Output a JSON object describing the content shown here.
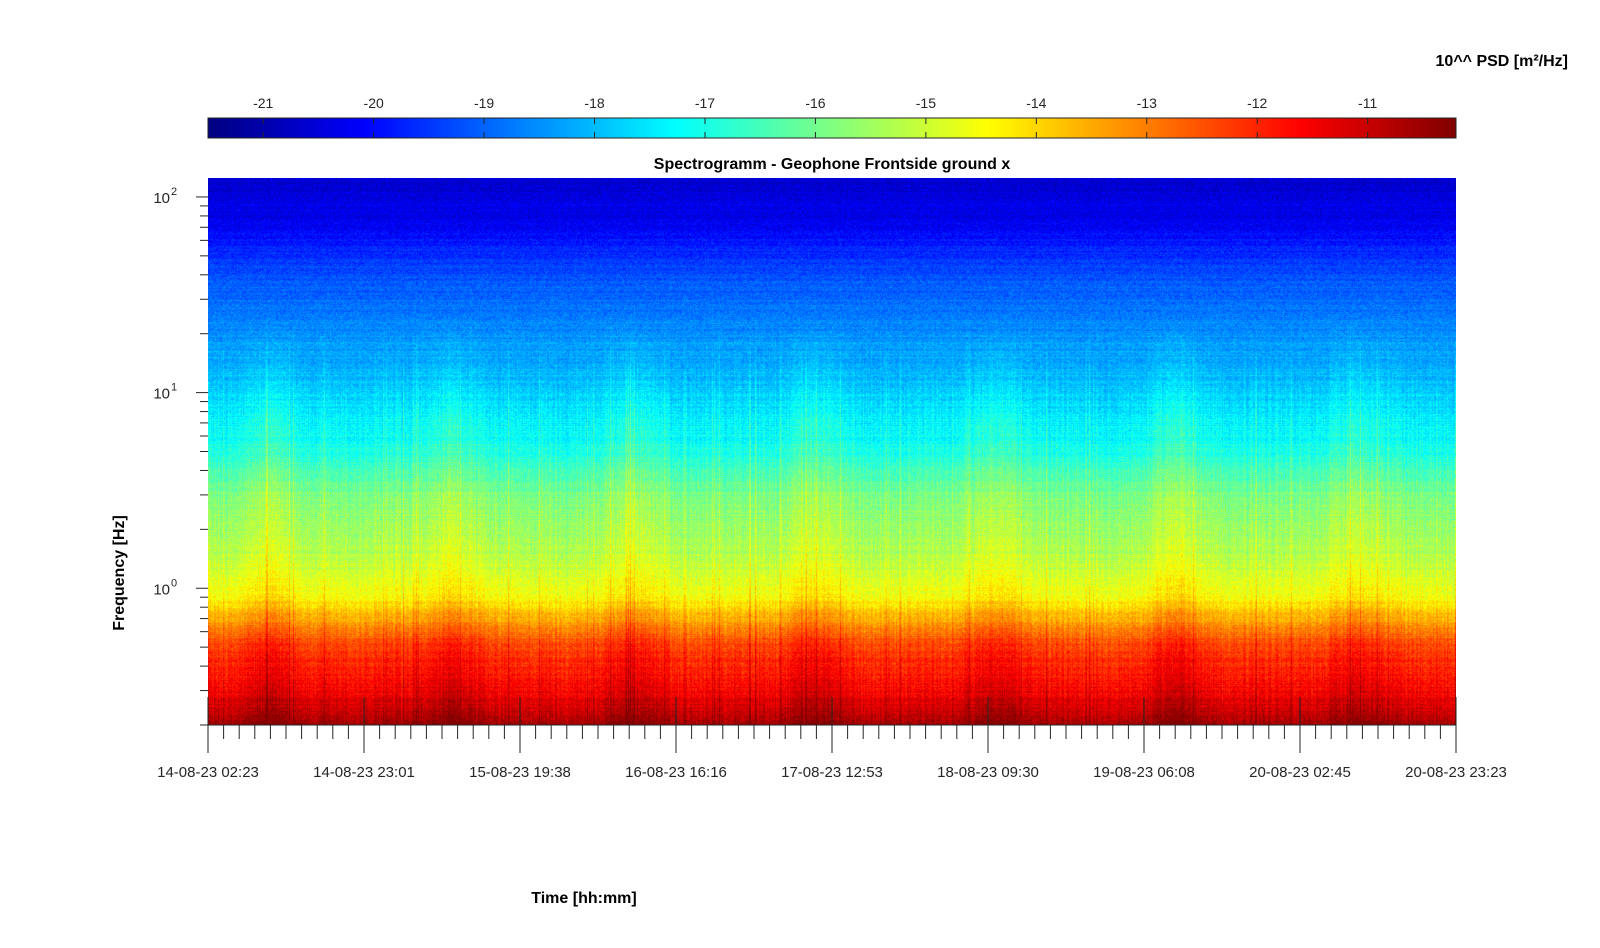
{
  "chart_data": {
    "type": "heatmap",
    "title": "Spectrogramm - Geophone Frontside ground x",
    "xlabel": "Time [hh:mm]",
    "ylabel": "Frequency [Hz]",
    "yscale": "log",
    "ylim": [
      0.2,
      125
    ],
    "x_tick_labels": [
      "14-08-23 02:23",
      "14-08-23 23:01",
      "15-08-23 19:38",
      "16-08-23 16:16",
      "17-08-23 12:53",
      "18-08-23 09:30",
      "19-08-23 06:08",
      "20-08-23 02:45",
      "20-08-23 23:23"
    ],
    "y_ticks": [
      1,
      10,
      100
    ],
    "y_tick_labels": [
      {
        "base": "10",
        "exp": "0"
      },
      {
        "base": "10",
        "exp": "1"
      },
      {
        "base": "10",
        "exp": "2"
      }
    ],
    "colorbar": {
      "label": "10^^ PSD [m²/Hz]",
      "colormap": "jet",
      "range": [
        -21.5,
        -10.2
      ],
      "ticks": [
        -21,
        -20,
        -19,
        -18,
        -17,
        -16,
        -15,
        -14,
        -13,
        -12,
        -11
      ],
      "tick_labels": [
        "-21",
        "-20",
        "-19",
        "-18",
        "-17",
        "-16",
        "-15",
        "-14",
        "-13",
        "-12",
        "-11"
      ]
    },
    "frequency_profile": [
      {
        "f": 0.2,
        "log10_psd": -10.6
      },
      {
        "f": 0.3,
        "log10_psd": -11.6
      },
      {
        "f": 0.5,
        "log10_psd": -12.3
      },
      {
        "f": 0.7,
        "log10_psd": -13.5
      },
      {
        "f": 0.9,
        "log10_psd": -14.5
      },
      {
        "f": 1.5,
        "log10_psd": -15.3
      },
      {
        "f": 3,
        "log10_psd": -15.9
      },
      {
        "f": 5,
        "log10_psd": -17.0
      },
      {
        "f": 10,
        "log10_psd": -17.8
      },
      {
        "f": 20,
        "log10_psd": -18.5
      },
      {
        "f": 40,
        "log10_psd": -19.2
      },
      {
        "f": 70,
        "log10_psd": -20.2
      },
      {
        "f": 125,
        "log10_psd": -20.6
      }
    ],
    "narrow_bands": [
      {
        "f": 7.2,
        "log10_psd": -16.5
      },
      {
        "f": 11.5,
        "log10_psd": -15.8
      },
      {
        "f": 23.5,
        "log10_psd": -17.0
      },
      {
        "f": 28,
        "log10_psd": -17.5
      }
    ]
  }
}
